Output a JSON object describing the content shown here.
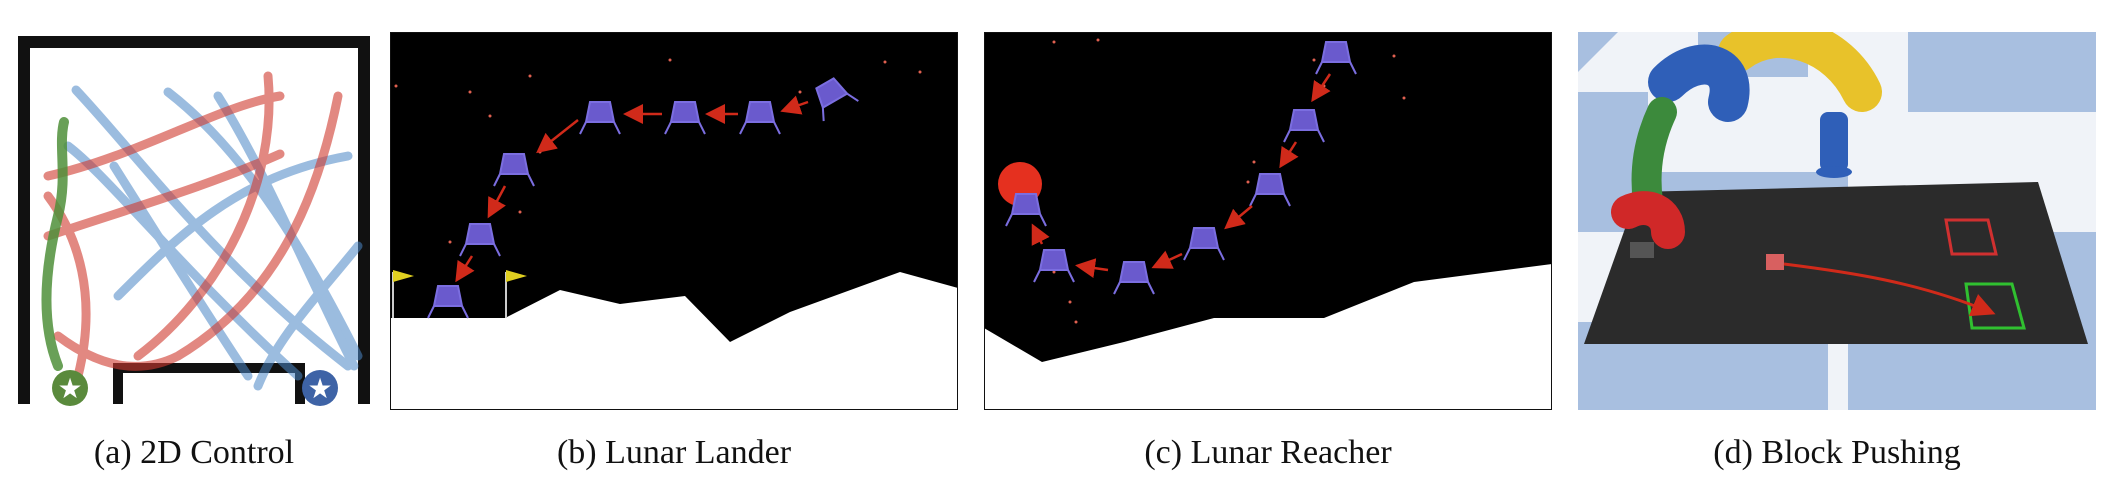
{
  "figure": {
    "panels": [
      {
        "id": "a",
        "caption": "(a) 2D Control"
      },
      {
        "id": "b",
        "caption": "(b) Lunar Lander"
      },
      {
        "id": "c",
        "caption": "(c) Lunar Reacher"
      },
      {
        "id": "d",
        "caption": "(d) Block Pushing"
      }
    ],
    "colors": {
      "left_goal": "#5a8a3c",
      "right_goal": "#3e63a6",
      "trace_red": "#d03a2f",
      "trace_blue": "#4a86c6",
      "lander": "#6a5acd",
      "arrow": "#d02a1a",
      "target": "#e5301f",
      "flag": "#e0d020"
    }
  }
}
